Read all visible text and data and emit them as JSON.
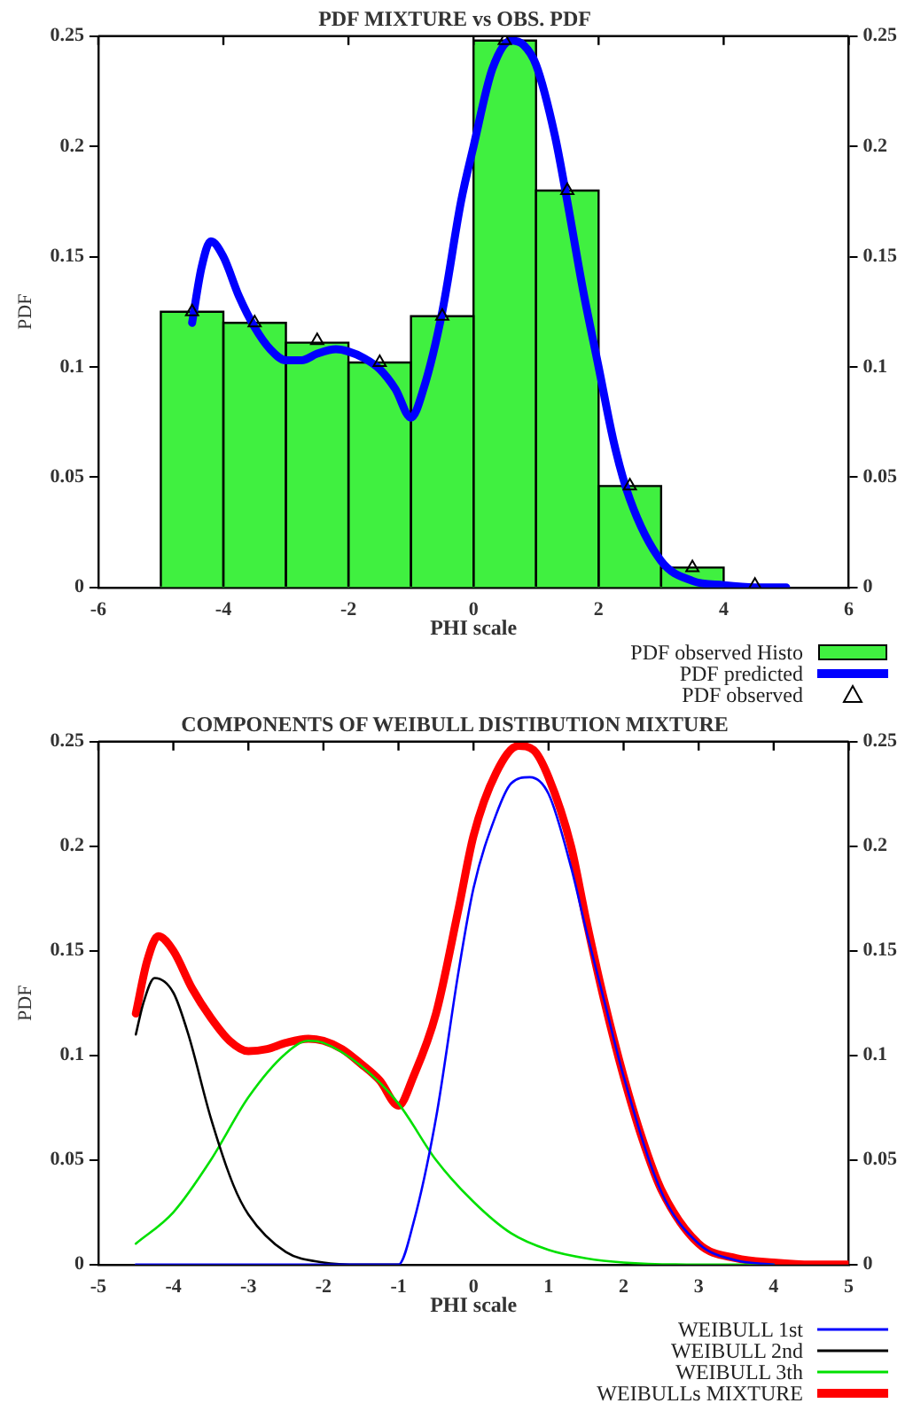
{
  "chart_data": [
    {
      "type": "histogram",
      "title": "PDF MIXTURE vs OBS. PDF",
      "xlabel": "PHI scale",
      "ylabel": "PDF",
      "bins": [
        -5,
        -4,
        -3,
        -2,
        -1,
        0,
        1,
        2,
        3,
        4
      ],
      "series": [
        {
          "name": "PDF observed Histo",
          "type": "histogram",
          "color": "#40f040",
          "values": [
            0.125,
            0.12,
            0.111,
            0.102,
            0.123,
            0.248,
            0.18,
            0.046,
            0.009
          ]
        },
        {
          "name": "PDF predicted",
          "type": "line",
          "color": "#0000ff",
          "x": [
            -4.5,
            -4.35,
            -4.2,
            -4,
            -3.75,
            -3.5,
            -3.25,
            -3,
            -2.75,
            -2.5,
            -2.2,
            -2,
            -1.75,
            -1.5,
            -1.25,
            -1,
            -0.8,
            -0.5,
            -0.2,
            0,
            0.3,
            0.6,
            0.8,
            1,
            1.3,
            1.5,
            1.75,
            2,
            2.25,
            2.5,
            3,
            3.5,
            4,
            4.5,
            5
          ],
          "values": [
            0.12,
            0.145,
            0.157,
            0.15,
            0.132,
            0.118,
            0.108,
            0.103,
            0.103,
            0.106,
            0.108,
            0.107,
            0.104,
            0.099,
            0.09,
            0.077,
            0.09,
            0.125,
            0.175,
            0.2,
            0.235,
            0.248,
            0.246,
            0.237,
            0.205,
            0.175,
            0.135,
            0.1,
            0.065,
            0.04,
            0.012,
            0.003,
            0.001,
            0,
            0
          ]
        },
        {
          "name": "PDF observed",
          "type": "scatter",
          "marker": "triangle",
          "color": "#000000",
          "x": [
            -4.5,
            -3.5,
            -2.5,
            -1.5,
            -0.5,
            0.5,
            1.5,
            2.5,
            3.5,
            4.5
          ],
          "values": [
            0.125,
            0.12,
            0.112,
            0.102,
            0.123,
            0.248,
            0.18,
            0.046,
            0.009,
            0.001
          ]
        }
      ],
      "xlim": [
        -6,
        6
      ],
      "xticks": [
        -6,
        -4,
        -2,
        0,
        2,
        4,
        6
      ],
      "ylim": [
        0,
        0.25
      ],
      "yticks": [
        0,
        0.05,
        0.1,
        0.15,
        0.2,
        0.25
      ],
      "y2lim": [
        0,
        0.25
      ],
      "y2ticks": [
        0,
        0.05,
        0.1,
        0.15,
        0.2,
        0.25
      ],
      "grid": false,
      "legend": "bottom right"
    },
    {
      "type": "line",
      "title": "COMPONENTS OF WEIBULL DISTIBUTION MIXTURE",
      "xlabel": "PHI scale",
      "ylabel": "PDF",
      "series": [
        {
          "name": "WEIBULL 1st",
          "color": "#0000ff",
          "x": [
            -4.5,
            -1,
            -0.8,
            -0.5,
            -0.2,
            0,
            0.3,
            0.5,
            0.75,
            1,
            1.3,
            1.5,
            1.75,
            2,
            2.5,
            3,
            3.5,
            4
          ],
          "values": [
            0,
            0,
            0.02,
            0.07,
            0.14,
            0.18,
            0.215,
            0.23,
            0.233,
            0.225,
            0.19,
            0.16,
            0.125,
            0.09,
            0.035,
            0.01,
            0.002,
            0
          ]
        },
        {
          "name": "WEIBULL 2nd",
          "color": "#000000",
          "x": [
            -4.5,
            -4.4,
            -4.25,
            -4,
            -3.8,
            -3.5,
            -3.2,
            -3,
            -2.5,
            -2,
            -1.5,
            -1
          ],
          "values": [
            0.11,
            0.125,
            0.137,
            0.13,
            0.11,
            0.07,
            0.038,
            0.024,
            0.006,
            0.001,
            0,
            0
          ]
        },
        {
          "name": "WEIBULL 3th",
          "color": "#00e000",
          "x": [
            -4.5,
            -4,
            -3.5,
            -3,
            -2.5,
            -2.2,
            -2,
            -1.5,
            -1,
            -0.5,
            0,
            0.5,
            1,
            1.5,
            2,
            3,
            4
          ],
          "values": [
            0.01,
            0.025,
            0.05,
            0.08,
            0.101,
            0.107,
            0.106,
            0.095,
            0.077,
            0.05,
            0.03,
            0.015,
            0.007,
            0.003,
            0.001,
            0,
            0
          ]
        },
        {
          "name": "WEIBULLs MIXTURE",
          "color": "#ff0000",
          "x": [
            -4.5,
            -4.35,
            -4.2,
            -4,
            -3.75,
            -3.5,
            -3.25,
            -3,
            -2.75,
            -2.5,
            -2.2,
            -2,
            -1.75,
            -1.5,
            -1.25,
            -1,
            -0.8,
            -0.5,
            -0.2,
            0,
            0.3,
            0.6,
            0.8,
            1,
            1.3,
            1.5,
            1.75,
            2,
            2.25,
            2.5,
            3,
            3.5,
            4,
            4.5,
            5
          ],
          "values": [
            0.12,
            0.145,
            0.157,
            0.15,
            0.132,
            0.118,
            0.107,
            0.102,
            0.103,
            0.106,
            0.108,
            0.107,
            0.103,
            0.096,
            0.088,
            0.076,
            0.09,
            0.12,
            0.17,
            0.205,
            0.235,
            0.248,
            0.246,
            0.233,
            0.2,
            0.165,
            0.125,
            0.09,
            0.06,
            0.036,
            0.01,
            0.003,
            0.001,
            0,
            0
          ]
        }
      ],
      "xlim": [
        -5,
        5
      ],
      "xticks": [
        -5,
        -4,
        -3,
        -2,
        -1,
        0,
        1,
        2,
        3,
        4,
        5
      ],
      "ylim": [
        0,
        0.25
      ],
      "yticks": [
        0,
        0.05,
        0.1,
        0.15,
        0.2,
        0.25
      ],
      "y2lim": [
        0,
        0.25
      ],
      "y2ticks": [
        0,
        0.05,
        0.1,
        0.15,
        0.2,
        0.25
      ],
      "grid": false,
      "legend": "bottom right"
    }
  ]
}
